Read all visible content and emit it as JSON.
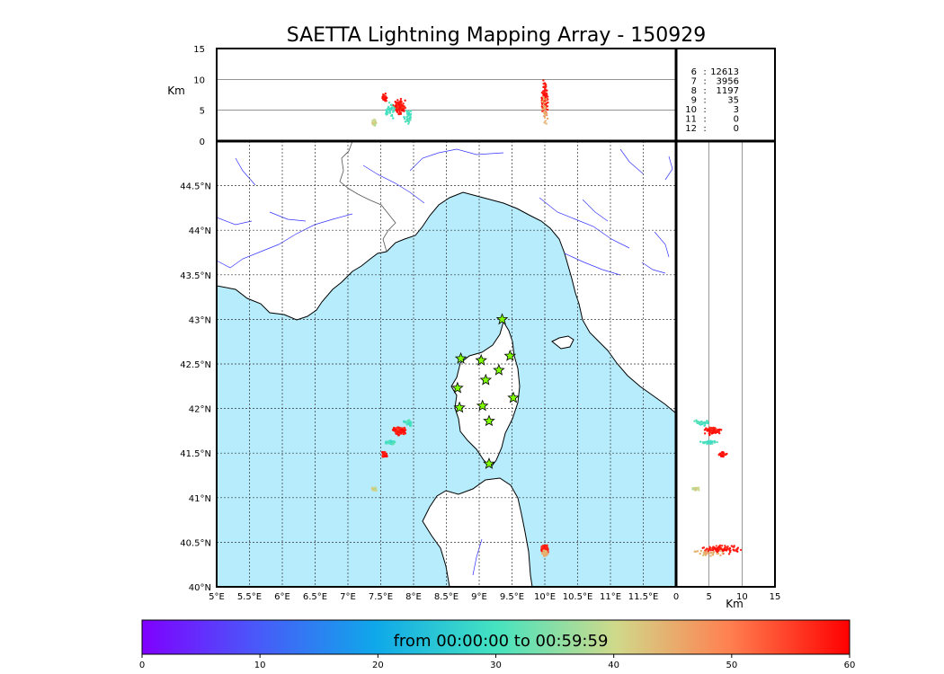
{
  "chart_data": {
    "type": "scatter",
    "title": "SAETTA Lightning Mapping Array - 150929",
    "map": {
      "lon_ticks": [
        "5°E",
        "5.5°E",
        "6°E",
        "6.5°E",
        "7°E",
        "7.5°E",
        "8°E",
        "8.5°E",
        "9°E",
        "9.5°E",
        "10°E",
        "10.5°E",
        "11°E",
        "11.5°E"
      ],
      "lat_ticks": [
        "40°N",
        "40.5°N",
        "41°N",
        "41.5°N",
        "42°N",
        "42.5°N",
        "43°N",
        "43.5°N",
        "44°N",
        "44.5°N"
      ],
      "xlim": [
        5,
        12
      ],
      "ylim": [
        40,
        45
      ],
      "grid": "on",
      "sea_color": "#b6ecfb",
      "stations": [
        [
          9.35,
          43.0
        ],
        [
          8.72,
          42.56
        ],
        [
          9.03,
          42.54
        ],
        [
          9.47,
          42.59
        ],
        [
          9.1,
          42.32
        ],
        [
          9.3,
          42.43
        ],
        [
          8.67,
          42.23
        ],
        [
          9.52,
          42.12
        ],
        [
          8.7,
          42.01
        ],
        [
          9.05,
          42.03
        ],
        [
          9.15,
          41.86
        ],
        [
          9.15,
          41.38
        ]
      ]
    },
    "altitude_top": {
      "ylabel": "Km",
      "y_ticks": [
        "0",
        "5",
        "10",
        "15"
      ],
      "ylim": [
        0,
        15
      ]
    },
    "altitude_side": {
      "xlabel": "Km",
      "x_ticks": [
        "0",
        "5",
        "10",
        "15"
      ],
      "xlim": [
        0,
        15
      ]
    },
    "station_counts": [
      {
        "stations": "6",
        "count": "12613",
        "color": "#000000"
      },
      {
        "stations": "7",
        "count": "3956",
        "color": "#ff0000"
      },
      {
        "stations": "8",
        "count": "1197",
        "color": "#000000"
      },
      {
        "stations": "9",
        "count": "35",
        "color": "#000000"
      },
      {
        "stations": "10",
        "count": "3",
        "color": "#000000"
      },
      {
        "stations": "11",
        "count": "0",
        "color": "#000000"
      },
      {
        "stations": "12",
        "count": "0",
        "color": "#000000"
      }
    ],
    "colorbar": {
      "label": "from 00:00:00 to 00:59:59",
      "ticks": [
        "0",
        "10",
        "20",
        "30",
        "40",
        "50",
        "60"
      ],
      "range": [
        0,
        60
      ]
    },
    "clusters": [
      {
        "lon": 7.78,
        "lat": 41.75,
        "lon_spread": 0.12,
        "lat_spread": 0.05,
        "minute": 58,
        "n": 120,
        "alt": 5.5,
        "alt_spread": 1.5
      },
      {
        "lon": 7.65,
        "lat": 41.62,
        "lon_spread": 0.1,
        "lat_spread": 0.03,
        "minute": 30,
        "n": 40,
        "alt": 5,
        "alt_spread": 1.5
      },
      {
        "lon": 7.92,
        "lat": 41.84,
        "lon_spread": 0.08,
        "lat_spread": 0.04,
        "minute": 30,
        "n": 40,
        "alt": 4,
        "alt_spread": 1.5
      },
      {
        "lon": 7.55,
        "lat": 41.48,
        "lon_spread": 0.05,
        "lat_spread": 0.04,
        "minute": 58,
        "n": 30,
        "alt": 7,
        "alt_spread": 1
      },
      {
        "lon": 7.4,
        "lat": 41.1,
        "lon_spread": 0.05,
        "lat_spread": 0.03,
        "minute": 40,
        "n": 20,
        "alt": 3,
        "alt_spread": 1
      },
      {
        "lon": 10.0,
        "lat": 40.42,
        "lon_spread": 0.07,
        "lat_spread": 0.06,
        "minute": 58,
        "n": 90,
        "alt": 7,
        "alt_spread": 3.5
      },
      {
        "lon": 10.0,
        "lat": 40.38,
        "lon_spread": 0.05,
        "lat_spread": 0.04,
        "minute": 45,
        "n": 30,
        "alt": 5,
        "alt_spread": 3
      }
    ]
  }
}
